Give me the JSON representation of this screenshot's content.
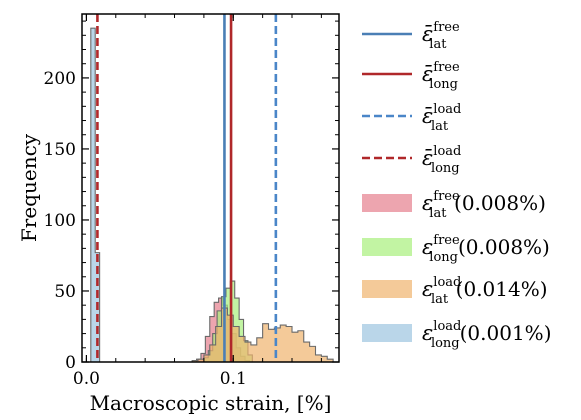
{
  "chart_data": {
    "type": "histogram",
    "xlabel": "Macroscopic strain, [%]",
    "ylabel": "Frequency",
    "xlim": [
      -0.003,
      0.172
    ],
    "ylim": [
      0,
      245
    ],
    "x_ticks": [
      0.0,
      0.1
    ],
    "x_tick_labels": [
      "0.0",
      "0.1"
    ],
    "y_ticks": [
      0,
      50,
      100,
      150,
      200
    ],
    "y_tick_labels": [
      "0",
      "50",
      "100",
      "150",
      "200"
    ],
    "grid": false,
    "legend_position": "outside-right",
    "vlines": [
      {
        "label_base": "ε̄",
        "label_sup": "free",
        "label_sub": "lat",
        "x": 0.094,
        "color": "#4a7fb5",
        "style": "solid"
      },
      {
        "label_base": "ε̄",
        "label_sup": "free",
        "label_sub": "long",
        "x": 0.0985,
        "color": "#b0282a",
        "style": "solid"
      },
      {
        "label_base": "ε̄",
        "label_sup": "load",
        "label_sub": "lat",
        "x": 0.129,
        "color": "#4a86c8",
        "style": "dashed"
      },
      {
        "label_base": "ε̄",
        "label_sup": "load",
        "label_sub": "long",
        "x": 0.0075,
        "color": "#b0282a",
        "style": "dashed"
      }
    ],
    "series": [
      {
        "label_base": "ε",
        "label_sup": "free",
        "label_sub": "lat",
        "label_extra": "(0.008%)",
        "color": "#e57f8d",
        "bin_edges": [
          0.075,
          0.078,
          0.081,
          0.084,
          0.087,
          0.09,
          0.093,
          0.096,
          0.099,
          0.102,
          0.105,
          0.108,
          0.111
        ],
        "counts": [
          2,
          6,
          18,
          32,
          42,
          45,
          40,
          30,
          20,
          10,
          4,
          1
        ]
      },
      {
        "label_base": "ε",
        "label_sup": "free",
        "label_sub": "long",
        "label_extra": "(0.008%)",
        "color": "#a8f07c",
        "bin_edges": [
          0.08,
          0.083,
          0.086,
          0.089,
          0.092,
          0.095,
          0.098,
          0.101,
          0.104,
          0.107,
          0.11,
          0.113
        ],
        "counts": [
          3,
          8,
          20,
          36,
          46,
          52,
          57,
          45,
          30,
          15,
          5
        ]
      },
      {
        "label_base": "ε",
        "label_sup": "load",
        "label_sub": "lat",
        "label_extra": "(0.014%)",
        "color": "#efb36e",
        "bin_edges": [
          0.072,
          0.076,
          0.08,
          0.084,
          0.088,
          0.092,
          0.096,
          0.1,
          0.104,
          0.108,
          0.112,
          0.116,
          0.12,
          0.124,
          0.128,
          0.132,
          0.136,
          0.14,
          0.144,
          0.148,
          0.152,
          0.156,
          0.16,
          0.164,
          0.168
        ],
        "counts": [
          1,
          2,
          5,
          12,
          25,
          38,
          33,
          25,
          18,
          14,
          12,
          17,
          27,
          23,
          24,
          26,
          25,
          21,
          22,
          14,
          11,
          5,
          4,
          2
        ]
      },
      {
        "label_base": "ε",
        "label_sup": "load",
        "label_sub": "long",
        "label_extra": "(0.001%)",
        "color": "#9cc4df",
        "bin_edges": [
          0.003,
          0.006,
          0.009,
          0.012
        ],
        "counts": [
          235,
          77,
          0
        ]
      }
    ]
  }
}
